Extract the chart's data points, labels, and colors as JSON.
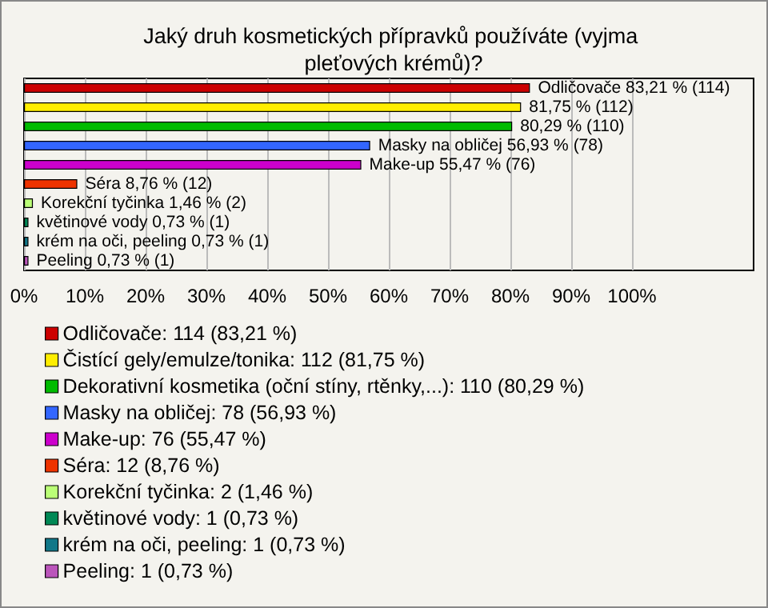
{
  "chart_data": {
    "type": "bar",
    "orientation": "horizontal",
    "stacked": true,
    "title": "Jaký druh kosmetických přípravků používáte (vyjma pleťových krémů)?",
    "categories": [
      null,
      null,
      null,
      null,
      null,
      null,
      null,
      null,
      null,
      null
    ],
    "series": [
      {
        "name": "Odličovače: 114 (83,21 %)",
        "color": "#cc0000",
        "values": [
          83.21,
          null,
          null,
          null,
          null,
          null,
          null,
          null,
          null,
          null
        ],
        "value_labels": [
          "Odličovače 83,21 % (114)",
          null,
          null,
          null,
          null,
          null,
          null,
          null,
          null,
          null
        ]
      },
      {
        "name": "Čistící gely/emulze/tonika: 112 (81,75 %)",
        "color": "#ffee00",
        "values": [
          null,
          81.75,
          null,
          null,
          null,
          null,
          null,
          null,
          null,
          null
        ],
        "value_labels": [
          null,
          "81,75 % (112)",
          null,
          null,
          null,
          null,
          null,
          null,
          null,
          null
        ]
      },
      {
        "name": "Dekorativní kosmetika (oční stíny, rtěnky,...): 110 (80,29 %)",
        "color": "#00bb00",
        "values": [
          null,
          null,
          80.29,
          null,
          null,
          null,
          null,
          null,
          null,
          null
        ],
        "value_labels": [
          null,
          null,
          "80,29 % (110)",
          null,
          null,
          null,
          null,
          null,
          null,
          null
        ]
      },
      {
        "name": "Masky na obličej: 78 (56,93 %)",
        "color": "#3366ff",
        "values": [
          null,
          null,
          null,
          56.93,
          null,
          null,
          null,
          null,
          null,
          null
        ],
        "value_labels": [
          null,
          null,
          null,
          "Masky na obličej 56,93 % (78)",
          null,
          null,
          null,
          null,
          null,
          null
        ]
      },
      {
        "name": "Make-up: 76 (55,47 %)",
        "color": "#cc00cc",
        "values": [
          null,
          null,
          null,
          null,
          55.47,
          null,
          null,
          null,
          null,
          null
        ],
        "value_labels": [
          null,
          null,
          null,
          null,
          "Make-up 55,47 % (76)",
          null,
          null,
          null,
          null,
          null
        ]
      },
      {
        "name": "Séra: 12 (8,76 %)",
        "color": "#ee3300",
        "values": [
          null,
          null,
          null,
          null,
          null,
          8.76,
          null,
          null,
          null,
          null
        ],
        "value_labels": [
          null,
          null,
          null,
          null,
          null,
          "Séra 8,76 % (12)",
          null,
          null,
          null,
          null
        ]
      },
      {
        "name": "Korekční tyčinka: 2 (1,46 %)",
        "color": "#bbff77",
        "values": [
          null,
          null,
          null,
          null,
          null,
          null,
          1.46,
          null,
          null,
          null
        ],
        "value_labels": [
          null,
          null,
          null,
          null,
          null,
          null,
          "Korekční tyčinka 1,46 % (2)",
          null,
          null,
          null
        ]
      },
      {
        "name": "květinové vody: 1 (0,73 %)",
        "color": "#008855",
        "values": [
          null,
          null,
          null,
          null,
          null,
          null,
          null,
          0.73,
          null,
          null
        ],
        "value_labels": [
          null,
          null,
          null,
          null,
          null,
          null,
          null,
          "květinové vody 0,73 % (1)",
          null,
          null
        ]
      },
      {
        "name": "krém na oči, peeling: 1 (0,73 %)",
        "color": "#117788",
        "values": [
          null,
          null,
          null,
          null,
          null,
          null,
          null,
          null,
          0.73,
          null
        ],
        "value_labels": [
          null,
          null,
          null,
          null,
          null,
          null,
          null,
          null,
          "krém na oči, peeling 0,73 % (1)",
          null
        ]
      },
      {
        "name": "Peeling: 1 (0,73 %)",
        "color": "#bb55bb",
        "values": [
          null,
          null,
          null,
          null,
          null,
          null,
          null,
          null,
          null,
          0.73
        ],
        "value_labels": [
          null,
          null,
          null,
          null,
          null,
          null,
          null,
          null,
          null,
          "Peeling 0,73 % (1)"
        ]
      }
    ],
    "xlim": [
      0,
      120
    ],
    "xticks": [
      {
        "value": 0,
        "label": "0%"
      },
      {
        "value": 10,
        "label": "10%"
      },
      {
        "value": 20,
        "label": "20%"
      },
      {
        "value": 30,
        "label": "30%"
      },
      {
        "value": 40,
        "label": "40%"
      },
      {
        "value": 50,
        "label": "50%"
      },
      {
        "value": 60,
        "label": "60%"
      },
      {
        "value": 70,
        "label": "70%"
      },
      {
        "value": 80,
        "label": "80%"
      },
      {
        "value": 90,
        "label": "90%"
      },
      {
        "value": 100,
        "label": "100%"
      }
    ],
    "grid": "x",
    "legend": "bottom"
  }
}
